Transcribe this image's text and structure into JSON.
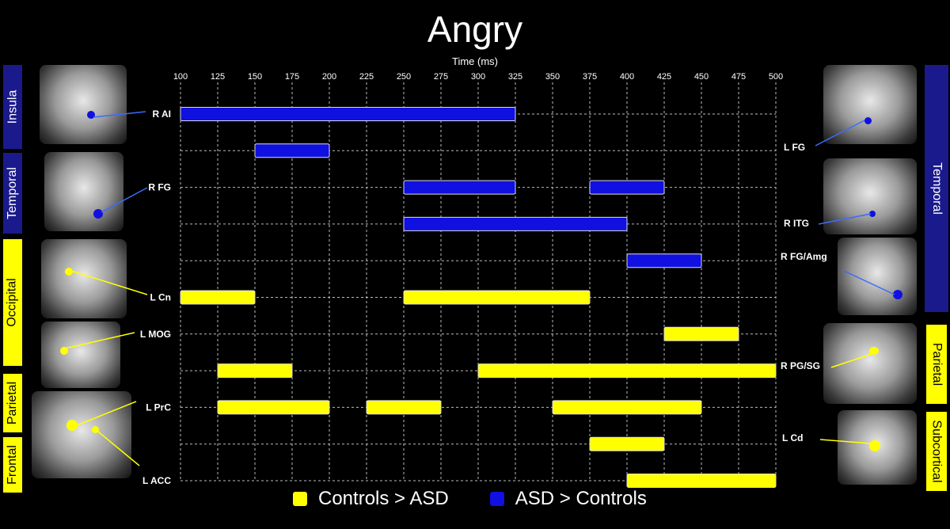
{
  "chart_data": {
    "type": "bar",
    "subtype": "gantt",
    "title": "Angry",
    "xlabel": "Time (ms)",
    "xlim": [
      100,
      500
    ],
    "xticks": [
      100,
      125,
      150,
      175,
      200,
      225,
      250,
      275,
      300,
      325,
      350,
      375,
      400,
      425,
      450,
      475,
      500
    ],
    "grid": true,
    "rows": [
      {
        "label": "R AI",
        "label_side": "left",
        "segments": [
          {
            "start": 100,
            "end": 325,
            "series": "ASD > Controls"
          }
        ]
      },
      {
        "label": "",
        "segments": [
          {
            "start": 150,
            "end": 200,
            "series": "ASD > Controls"
          }
        ]
      },
      {
        "label": "R FG",
        "label_side": "left",
        "segments": [
          {
            "start": 250,
            "end": 325,
            "series": "ASD > Controls"
          },
          {
            "start": 375,
            "end": 425,
            "series": "ASD > Controls"
          }
        ]
      },
      {
        "label": "",
        "segments": [
          {
            "start": 250,
            "end": 400,
            "series": "ASD > Controls"
          }
        ]
      },
      {
        "label": "",
        "segments": [
          {
            "start": 400,
            "end": 450,
            "series": "ASD > Controls"
          }
        ]
      },
      {
        "label": "L Cn",
        "label_side": "left",
        "segments": [
          {
            "start": 100,
            "end": 150,
            "series": "Controls > ASD"
          },
          {
            "start": 250,
            "end": 375,
            "series": "Controls > ASD"
          }
        ]
      },
      {
        "label": "L MOG",
        "label_side": "left",
        "segments": [
          {
            "start": 425,
            "end": 475,
            "series": "Controls > ASD"
          }
        ]
      },
      {
        "label": "",
        "segments": [
          {
            "start": 125,
            "end": 175,
            "series": "Controls > ASD"
          },
          {
            "start": 300,
            "end": 500,
            "series": "Controls > ASD"
          }
        ]
      },
      {
        "label": "L PrC",
        "label_side": "left",
        "segments": [
          {
            "start": 125,
            "end": 200,
            "series": "Controls > ASD"
          },
          {
            "start": 225,
            "end": 275,
            "series": "Controls > ASD"
          },
          {
            "start": 350,
            "end": 450,
            "series": "Controls > ASD"
          }
        ]
      },
      {
        "label": "",
        "segments": [
          {
            "start": 375,
            "end": 425,
            "series": "Controls > ASD"
          }
        ]
      },
      {
        "label": "L ACC",
        "label_side": "left",
        "segments": [
          {
            "start": 400,
            "end": 500,
            "series": "Controls > ASD"
          }
        ]
      }
    ],
    "right_labels": [
      "L FG",
      "R ITG",
      "R FG/Amg",
      "R PG/SG",
      "L Cd"
    ],
    "series": [
      {
        "name": "Controls > ASD",
        "color": "#ffff00"
      },
      {
        "name": "ASD > Controls",
        "color": "#1010e0"
      }
    ],
    "legend_position": "bottom"
  },
  "left_tags": [
    {
      "text": "Insula",
      "color": "#1a1a8c",
      "text_color": "#ffffff"
    },
    {
      "text": "Temporal",
      "color": "#1a1a8c",
      "text_color": "#ffffff"
    },
    {
      "text": "Occipital",
      "color": "#ffff00",
      "text_color": "#000000"
    },
    {
      "text": "Parietal",
      "color": "#ffff00",
      "text_color": "#000000"
    },
    {
      "text": "Frontal",
      "color": "#ffff00",
      "text_color": "#000000"
    }
  ],
  "right_tags": [
    {
      "text": "Temporal",
      "color": "#1a1a8c",
      "text_color": "#ffffff"
    },
    {
      "text": "Parietal",
      "color": "#ffff00",
      "text_color": "#000000"
    },
    {
      "text": "Subcortical",
      "color": "#ffff00",
      "text_color": "#000000"
    }
  ]
}
